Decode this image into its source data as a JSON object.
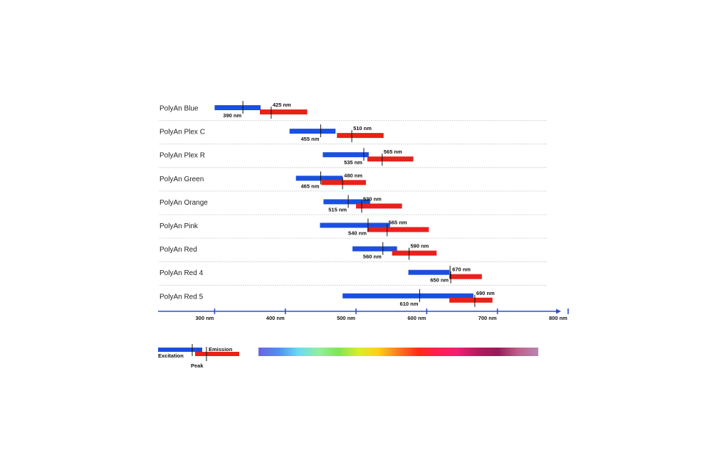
{
  "chart_data": {
    "type": "bar",
    "title": "",
    "xlabel": "",
    "ylabel": "",
    "x_unit": "nm",
    "xlim": [
      220,
      790
    ],
    "grid": false,
    "colors": {
      "excitation": "#1a4fe0",
      "emission": "#e8211b",
      "axis": "#2a4fd0",
      "peak_mark": "#111111"
    },
    "series": [
      {
        "name": "Excitation",
        "ranges": [
          [
            300,
            365
          ],
          [
            406,
            471
          ],
          [
            453,
            518
          ],
          [
            415,
            481
          ],
          [
            454,
            520
          ],
          [
            449,
            548
          ],
          [
            495,
            558
          ],
          [
            574,
            632
          ],
          [
            481,
            666
          ]
        ],
        "peaks": [
          340,
          450,
          511,
          450,
          489,
          517,
          538,
          633,
          590
        ]
      },
      {
        "name": "Emission",
        "ranges": [
          [
            364,
            431
          ],
          [
            473,
            539
          ],
          [
            516,
            581
          ],
          [
            451,
            514
          ],
          [
            500,
            565
          ],
          [
            516,
            603
          ],
          [
            551,
            614
          ],
          [
            632,
            678
          ],
          [
            632,
            693
          ]
        ],
        "peaks": [
          380,
          494,
          537,
          481,
          508,
          544,
          575,
          634,
          668
        ]
      }
    ],
    "rows": [
      {
        "name": "PolyAn Blue",
        "ex_label": "390 nm",
        "em_label": "425 nm"
      },
      {
        "name": "PolyAn Plex C",
        "ex_label": "455 nm",
        "em_label": "510 nm"
      },
      {
        "name": "PolyAn Plex R",
        "ex_label": "535 nm",
        "em_label": "565 nm"
      },
      {
        "name": "PolyAn Green",
        "ex_label": "465 nm",
        "em_label": "480 nm"
      },
      {
        "name": "PolyAn Orange",
        "ex_label": "515 nm",
        "em_label": "530 nm"
      },
      {
        "name": "PolyAn Pink",
        "ex_label": "540 nm",
        "em_label": "565 nm"
      },
      {
        "name": "PolyAn Red",
        "ex_label": "560 nm",
        "em_label": "590 nm"
      },
      {
        "name": "PolyAn Red 4",
        "ex_label": "650 nm",
        "em_label": "670 nm"
      },
      {
        "name": "PolyAn Red 5",
        "ex_label": "610 nm",
        "em_label": "690 nm"
      }
    ],
    "ticks": [
      {
        "value": 300,
        "label": "300 nm"
      },
      {
        "value": 400,
        "label": "400 nm"
      },
      {
        "value": 500,
        "label": "500 nm"
      },
      {
        "value": 600,
        "label": "600 nm"
      },
      {
        "value": 700,
        "label": "700 nm"
      },
      {
        "value": 800,
        "label": "800 nm"
      }
    ]
  },
  "legend": {
    "excitation": "Excitation",
    "emission": "Emission",
    "peak": "Peak"
  },
  "spectrum": {
    "colors": [
      "#6d63e6",
      "#4f8ff4",
      "#66ddf0",
      "#8ff0a0",
      "#7fe64f",
      "#d8ee2a",
      "#ffcf1a",
      "#ff7a1a",
      "#ff2a1a",
      "#ff1f55",
      "#f01f73",
      "#b8185e",
      "#9a1a5a",
      "#c0608a",
      "#b489b4"
    ]
  }
}
